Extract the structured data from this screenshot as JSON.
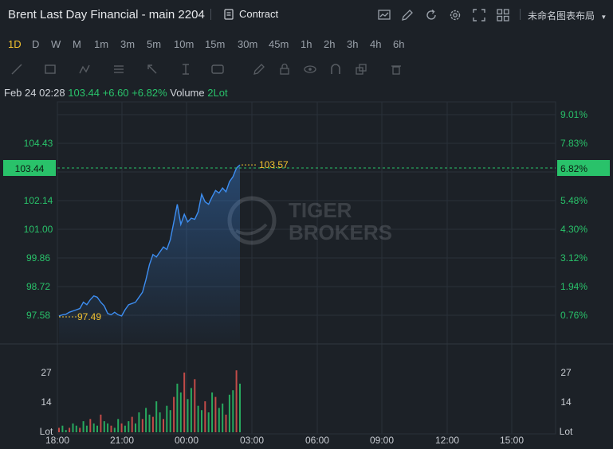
{
  "header": {
    "title": "Brent Last Day Financial - main 2204",
    "contract_label": "Contract",
    "layout_name": "未命名图表布局"
  },
  "timeframes": [
    {
      "label": "1D",
      "active": true
    },
    {
      "label": "D"
    },
    {
      "label": "W"
    },
    {
      "label": "M"
    },
    {
      "label": "1m"
    },
    {
      "label": "3m"
    },
    {
      "label": "5m"
    },
    {
      "label": "10m"
    },
    {
      "label": "15m"
    },
    {
      "label": "30m"
    },
    {
      "label": "45m"
    },
    {
      "label": "1h"
    },
    {
      "label": "2h"
    },
    {
      "label": "3h"
    },
    {
      "label": "4h"
    },
    {
      "label": "6h"
    }
  ],
  "info": {
    "date": "Feb 24 02:28",
    "price": "103.44",
    "change": "+6.60",
    "change_pct": "+6.82%",
    "volume_label": "Volume",
    "volume_value": "2Lot"
  },
  "chart_data": {
    "type": "line",
    "price_axis_labels": [
      "104.43",
      "102.14",
      "101.00",
      "99.86",
      "98.72",
      "97.58"
    ],
    "pct_axis_labels": [
      "9.01%",
      "7.83%",
      "5.48%",
      "4.30%",
      "3.12%",
      "1.94%",
      "0.76%"
    ],
    "current_price_tag": "103.44",
    "current_pct_tag": "6.82%",
    "high_marker": "103.57",
    "low_marker": "97.49",
    "x_tick_labels": [
      "18:00",
      "21:00",
      "00:00",
      "03:00",
      "06:00",
      "09:00",
      "12:00",
      "15:00"
    ],
    "volume_axis_labels": [
      "27",
      "14",
      "Lot"
    ],
    "watermark": [
      "TIGER",
      "BROKERS"
    ],
    "price_series": [
      97.55,
      97.6,
      97.62,
      97.7,
      97.75,
      97.8,
      97.85,
      98.1,
      98.0,
      98.2,
      98.35,
      98.3,
      98.1,
      97.95,
      97.65,
      97.6,
      97.7,
      97.6,
      97.55,
      97.8,
      98.0,
      98.05,
      98.1,
      98.3,
      98.5,
      99.0,
      99.6,
      100.0,
      99.9,
      100.1,
      100.3,
      100.2,
      100.6,
      101.3,
      102.0,
      101.2,
      101.6,
      101.3,
      101.45,
      101.4,
      101.7,
      102.4,
      102.1,
      102.0,
      102.3,
      102.55,
      102.45,
      102.65,
      102.5,
      102.9,
      103.1,
      103.44,
      103.57
    ],
    "volume_values": [
      2,
      3,
      1,
      2,
      4,
      3,
      2,
      5,
      3,
      6,
      4,
      3,
      8,
      5,
      4,
      3,
      2,
      6,
      4,
      3,
      5,
      7,
      4,
      9,
      6,
      11,
      8,
      7,
      14,
      9,
      6,
      12,
      10,
      16,
      22,
      18,
      27,
      15,
      20,
      24,
      12,
      10,
      14,
      9,
      18,
      16,
      11,
      13,
      8,
      17,
      19,
      28,
      22
    ]
  },
  "colors": {
    "background": "#1c2127",
    "line": "#3d8ef2",
    "up": "#29c26a",
    "marker": "#f2c230",
    "grid": "#2a313a"
  }
}
